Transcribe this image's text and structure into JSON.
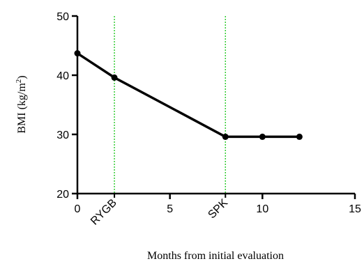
{
  "chart_data": {
    "type": "line",
    "title": "",
    "xlabel": "Months from initial evaluation",
    "ylabel_main": "BMI (kg/m",
    "ylabel_sup": "2",
    "ylabel_close": ")",
    "xlim": [
      0,
      15
    ],
    "ylim": [
      20,
      50
    ],
    "x_ticks": [
      0,
      5,
      10,
      15
    ],
    "y_ticks": [
      20,
      30,
      40,
      50
    ],
    "grid": false,
    "legend": "none",
    "line_color": "#000000",
    "event_color": "#33cc33",
    "events": [
      {
        "label": "RYGB",
        "x": 2
      },
      {
        "label": "SPK",
        "x": 8
      }
    ],
    "series": [
      {
        "x": [
          0,
          2,
          8,
          10,
          12
        ],
        "y": [
          43.7,
          39.6,
          29.6,
          29.6,
          29.6
        ]
      }
    ]
  }
}
